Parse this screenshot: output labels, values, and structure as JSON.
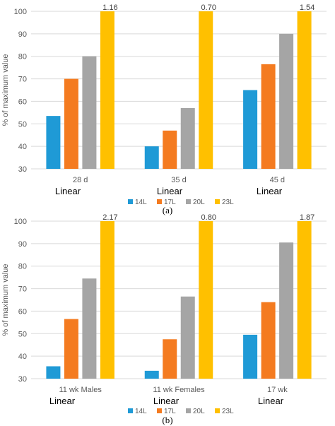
{
  "chart_data": [
    {
      "type": "bar",
      "caption": "(a)",
      "ylabel": "% of maximum value",
      "ylim": [
        30,
        100
      ],
      "yticks": [
        30,
        40,
        50,
        60,
        70,
        80,
        90,
        100
      ],
      "grid": "horizontal",
      "legend_position": "bottom",
      "categories": [
        "28 d",
        "35 d",
        "45 d"
      ],
      "category_notes": [
        "Linear",
        "Linear",
        "Linear"
      ],
      "series": [
        {
          "name": "14L",
          "color": "#1f9ad6",
          "values": [
            53.5,
            40,
            65
          ]
        },
        {
          "name": "17L",
          "color": "#f47b20",
          "values": [
            70,
            47,
            76.5
          ]
        },
        {
          "name": "20L",
          "color": "#a5a5a5",
          "values": [
            80,
            57,
            90
          ]
        },
        {
          "name": "23L",
          "color": "#ffc000",
          "values": [
            100,
            100,
            100
          ]
        }
      ],
      "data_labels": [
        "1.16",
        "0.70",
        "1.54"
      ]
    },
    {
      "type": "bar",
      "caption": "(b)",
      "ylabel": "% of maximum value",
      "ylim": [
        30,
        100
      ],
      "yticks": [
        30,
        40,
        50,
        60,
        70,
        80,
        90,
        100
      ],
      "grid": "horizontal",
      "legend_position": "bottom",
      "categories": [
        "11 wk Males",
        "11 wk Females",
        "17 wk"
      ],
      "category_notes": [
        "Linear",
        "Linear",
        "Linear"
      ],
      "series": [
        {
          "name": "14L",
          "color": "#1f9ad6",
          "values": [
            35.5,
            33.5,
            49.5
          ]
        },
        {
          "name": "17L",
          "color": "#f47b20",
          "values": [
            56.5,
            47.5,
            64
          ]
        },
        {
          "name": "20L",
          "color": "#a5a5a5",
          "values": [
            74.5,
            66.5,
            90.5
          ]
        },
        {
          "name": "23L",
          "color": "#ffc000",
          "values": [
            100,
            100,
            100
          ]
        }
      ],
      "data_labels": [
        "2.17",
        "0.80",
        "1.87"
      ]
    }
  ]
}
